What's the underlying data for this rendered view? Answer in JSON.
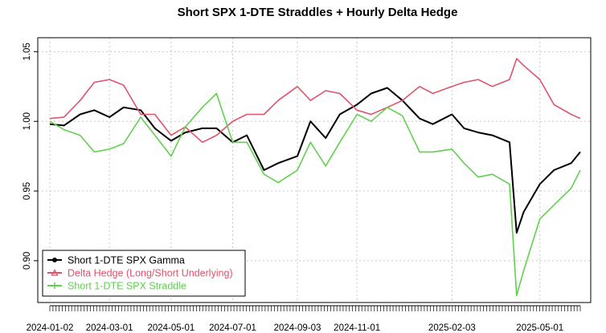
{
  "chart_data": {
    "type": "line",
    "title": "Short SPX 1-DTE Straddles + Hourly Delta Hedge",
    "xlabel": "",
    "ylabel": "",
    "grid": true,
    "legend_position": "bottom-left",
    "x_dates": [
      "2024-01-02",
      "2024-01-16",
      "2024-02-01",
      "2024-02-15",
      "2024-03-01",
      "2024-03-15",
      "2024-04-01",
      "2024-04-15",
      "2024-05-01",
      "2024-05-15",
      "2024-06-01",
      "2024-06-15",
      "2024-07-01",
      "2024-07-15",
      "2024-08-01",
      "2024-08-15",
      "2024-09-03",
      "2024-09-16",
      "2024-10-01",
      "2024-10-15",
      "2024-11-01",
      "2024-11-15",
      "2024-12-01",
      "2024-12-16",
      "2025-01-02",
      "2025-01-15",
      "2025-02-03",
      "2025-02-15",
      "2025-03-01",
      "2025-03-15",
      "2025-04-01",
      "2025-04-08",
      "2025-04-15",
      "2025-05-01",
      "2025-05-15",
      "2025-06-01",
      "2025-06-10"
    ],
    "x_ticks": [
      "2024-01-02",
      "2024-03-01",
      "2024-05-01",
      "2024-07-01",
      "2024-09-03",
      "2024-11-01",
      "2025-02-03",
      "2025-05-01"
    ],
    "y_ticks": [
      "0.90",
      "0.95",
      "1.00",
      "1.05"
    ],
    "ylim": [
      0.87,
      1.06
    ],
    "series": [
      {
        "name": "Short 1-DTE SPX Gamma",
        "color": "#000000",
        "marker": "circle",
        "values": [
          0.998,
          0.997,
          1.005,
          1.008,
          1.003,
          1.01,
          1.008,
          0.995,
          0.986,
          0.992,
          0.995,
          0.995,
          0.985,
          0.99,
          0.965,
          0.97,
          0.975,
          1.0,
          0.988,
          1.005,
          1.012,
          1.02,
          1.024,
          1.015,
          1.002,
          0.998,
          1.005,
          0.995,
          0.992,
          0.99,
          0.985,
          0.92,
          0.935,
          0.955,
          0.965,
          0.97,
          0.978
        ]
      },
      {
        "name": "Delta Hedge (Long/Short Underlying)",
        "color": "#df536b",
        "marker": "triangle",
        "values": [
          1.002,
          1.003,
          1.015,
          1.028,
          1.03,
          1.026,
          1.005,
          1.005,
          0.99,
          0.996,
          0.985,
          0.99,
          1.0,
          1.005,
          1.005,
          1.015,
          1.025,
          1.015,
          1.022,
          1.02,
          1.008,
          1.005,
          1.01,
          1.015,
          1.025,
          1.02,
          1.025,
          1.028,
          1.03,
          1.025,
          1.03,
          1.045,
          1.04,
          1.03,
          1.012,
          1.005,
          1.002
        ]
      },
      {
        "name": "Short 1-DTE SPX Straddle",
        "color": "#61d04f",
        "marker": "plus",
        "values": [
          1.0,
          0.994,
          0.99,
          0.978,
          0.98,
          0.984,
          1.003,
          0.99,
          0.975,
          0.996,
          1.01,
          1.02,
          0.985,
          0.985,
          0.962,
          0.956,
          0.965,
          0.985,
          0.968,
          0.985,
          1.005,
          1.0,
          1.01,
          1.004,
          0.978,
          0.978,
          0.98,
          0.97,
          0.96,
          0.962,
          0.955,
          0.875,
          0.893,
          0.93,
          0.94,
          0.952,
          0.965
        ]
      }
    ]
  }
}
